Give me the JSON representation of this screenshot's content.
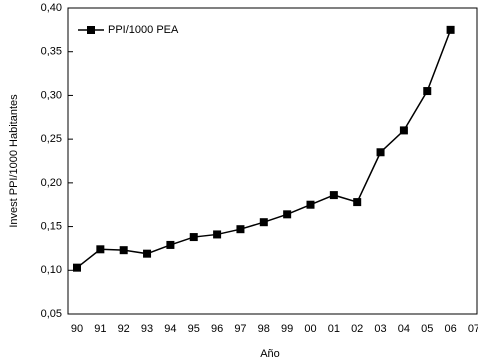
{
  "chart_data": {
    "type": "line",
    "x_label": "Año",
    "y_label": "Invest PPI/1000 Habitantes",
    "categories": [
      "90",
      "91",
      "92",
      "93",
      "94",
      "95",
      "96",
      "97",
      "98",
      "99",
      "00",
      "01",
      "02",
      "03",
      "04",
      "05",
      "06",
      "07"
    ],
    "series": [
      {
        "name": "PPI/1000 PEA",
        "color": "#000000",
        "values": [
          0.103,
          0.124,
          0.123,
          0.119,
          0.129,
          0.138,
          0.141,
          0.147,
          0.155,
          0.164,
          0.175,
          0.186,
          0.178,
          0.235,
          0.26,
          0.305,
          0.375,
          null
        ]
      }
    ],
    "ylim": [
      0.05,
      0.4
    ],
    "yticks": [
      {
        "value": 0.05,
        "label": "0,05"
      },
      {
        "value": 0.1,
        "label": "0,10"
      },
      {
        "value": 0.15,
        "label": "0,15"
      },
      {
        "value": 0.2,
        "label": "0,20"
      },
      {
        "value": 0.25,
        "label": "0,25"
      },
      {
        "value": 0.3,
        "label": "0,30"
      },
      {
        "value": 0.35,
        "label": "0,35"
      },
      {
        "value": 0.4,
        "label": "0,40"
      }
    ],
    "legend": "upper-left"
  }
}
